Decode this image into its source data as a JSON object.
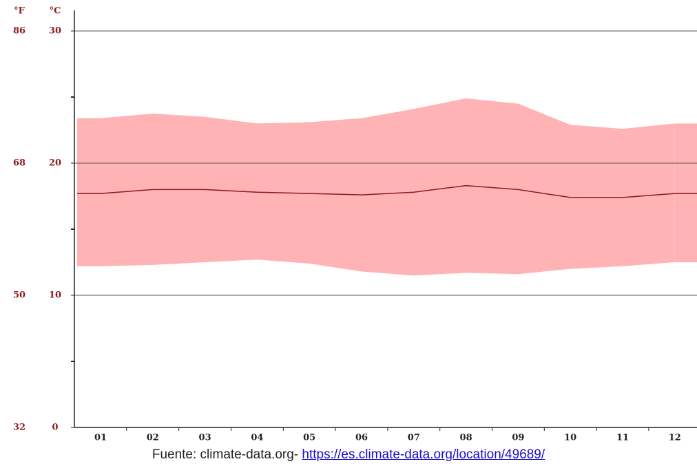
{
  "chart_data": {
    "type": "line",
    "y2_unit": "°F",
    "y_unit": "°C",
    "categories": [
      "01",
      "02",
      "03",
      "04",
      "05",
      "06",
      "07",
      "08",
      "09",
      "10",
      "11",
      "12"
    ],
    "band": {
      "color": "#ffb3b5",
      "upper": [
        23.4,
        23.75,
        23.5,
        23.0,
        23.1,
        23.4,
        24.1,
        24.9,
        24.5,
        22.9,
        22.6,
        23.0
      ],
      "lower": [
        12.2,
        12.3,
        12.5,
        12.7,
        12.4,
        11.8,
        11.5,
        11.7,
        11.6,
        12.0,
        12.2,
        12.5
      ]
    },
    "series": [
      {
        "color": "#8b1a1a",
        "values": [
          17.7,
          18.0,
          18.0,
          17.8,
          17.7,
          17.6,
          17.8,
          18.3,
          18.0,
          17.4,
          17.4,
          17.7
        ]
      }
    ],
    "ylim": [
      0,
      30
    ],
    "yticks": [
      0,
      10,
      20,
      30
    ],
    "minor_yticks": [
      5,
      15,
      25
    ],
    "y2lim": [
      32,
      86
    ],
    "y2ticks": [
      32,
      50,
      68,
      86
    ],
    "grid": true
  },
  "footer": {
    "text": "Fuente: climate-data.org- ",
    "link": "https://es.climate-data.org/location/49689/"
  }
}
